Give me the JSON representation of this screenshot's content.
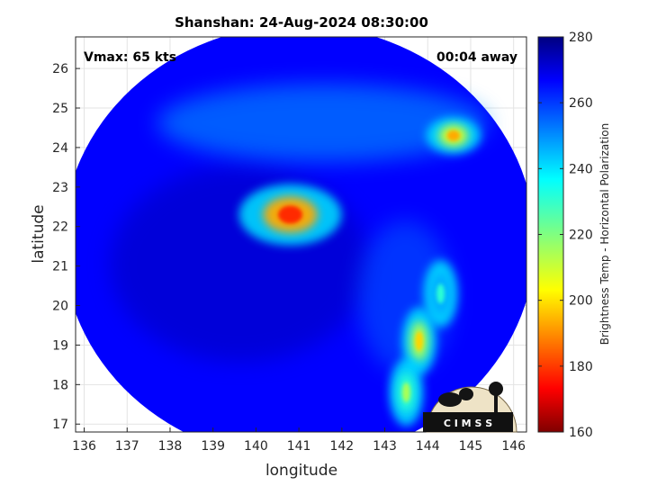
{
  "chart_data": {
    "type": "heatmap",
    "title": "Shanshan: 24-Aug-2024 08:30:00",
    "xlabel": "longitude",
    "ylabel": "latitude",
    "xlim": [
      135.8,
      146.3
    ],
    "ylim": [
      16.8,
      26.8
    ],
    "x_ticks": [
      136,
      137,
      138,
      139,
      140,
      141,
      142,
      143,
      144,
      145,
      146
    ],
    "y_ticks": [
      17,
      18,
      19,
      20,
      21,
      22,
      23,
      24,
      25,
      26
    ],
    "grid": true,
    "storm_center": {
      "lon": 141.0,
      "lat": 21.6
    },
    "swath_radius_deg": 5.5,
    "background_tb": 265,
    "features": [
      {
        "kind": "eyewall",
        "lon": 140.8,
        "lat": 22.3,
        "tb": 180
      },
      {
        "kind": "convection",
        "lon": 144.6,
        "lat": 24.3,
        "tb": 195
      },
      {
        "kind": "rainband",
        "lon": 143.8,
        "lat": 19.1,
        "tb": 200
      },
      {
        "kind": "rainband",
        "lon": 143.5,
        "lat": 17.8,
        "tb": 215
      },
      {
        "kind": "rainband",
        "lon": 144.3,
        "lat": 20.3,
        "tb": 230
      }
    ],
    "colorbar": {
      "label": "Brightness Temp - Horizontal Polarization",
      "min": 160,
      "max": 280,
      "ticks": [
        160,
        180,
        200,
        220,
        240,
        260,
        280
      ],
      "colormap": "jet"
    }
  },
  "annotations": {
    "vmax": "Vmax: 65 kts",
    "time_away": "00:04 away"
  },
  "logo": {
    "text": "C I M S S"
  }
}
